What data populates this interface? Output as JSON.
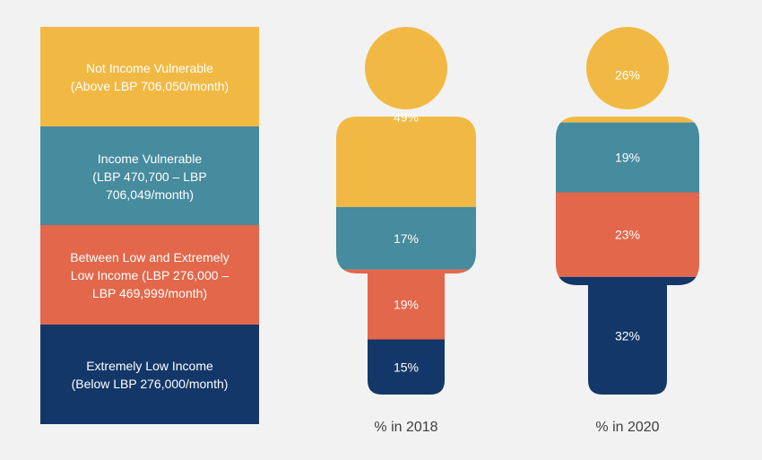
{
  "colors": {
    "background": "#f2f2f2",
    "not_vulnerable": "#f1b944",
    "vulnerable": "#468b9e",
    "low_income": "#e3674a",
    "extremely_low": "#133768"
  },
  "legend": [
    {
      "key": "not_vulnerable",
      "text": "Not Income Vulnerable\n(Above LBP 706,050/month)"
    },
    {
      "key": "vulnerable",
      "text": "Income Vulnerable\n(LBP 470,700 – LBP\n706,049/month)"
    },
    {
      "key": "low_income",
      "text": "Between Low and Extremely\nLow Income (LBP 276,000 –\nLBP 469,999/month)"
    },
    {
      "key": "extremely_low",
      "text": "Extremely Low Income\n(Below LBP 276,000/month)"
    }
  ],
  "chart_data": {
    "type": "bar",
    "categories": [
      "% in 2018",
      "% in 2020"
    ],
    "series": [
      {
        "name": "Not Income Vulnerable",
        "values": [
          49,
          26
        ],
        "labels": [
          "49%",
          "26%"
        ]
      },
      {
        "name": "Income Vulnerable",
        "values": [
          17,
          19
        ],
        "labels": [
          "17%",
          "19%"
        ]
      },
      {
        "name": "Between Low and Extremely Low Income",
        "values": [
          19,
          23
        ],
        "labels": [
          "19%",
          "23%"
        ]
      },
      {
        "name": "Extremely Low Income",
        "values": [
          15,
          32
        ],
        "labels": [
          "15%",
          "32%"
        ]
      }
    ],
    "stacked": true,
    "ylim": [
      0,
      100
    ]
  }
}
